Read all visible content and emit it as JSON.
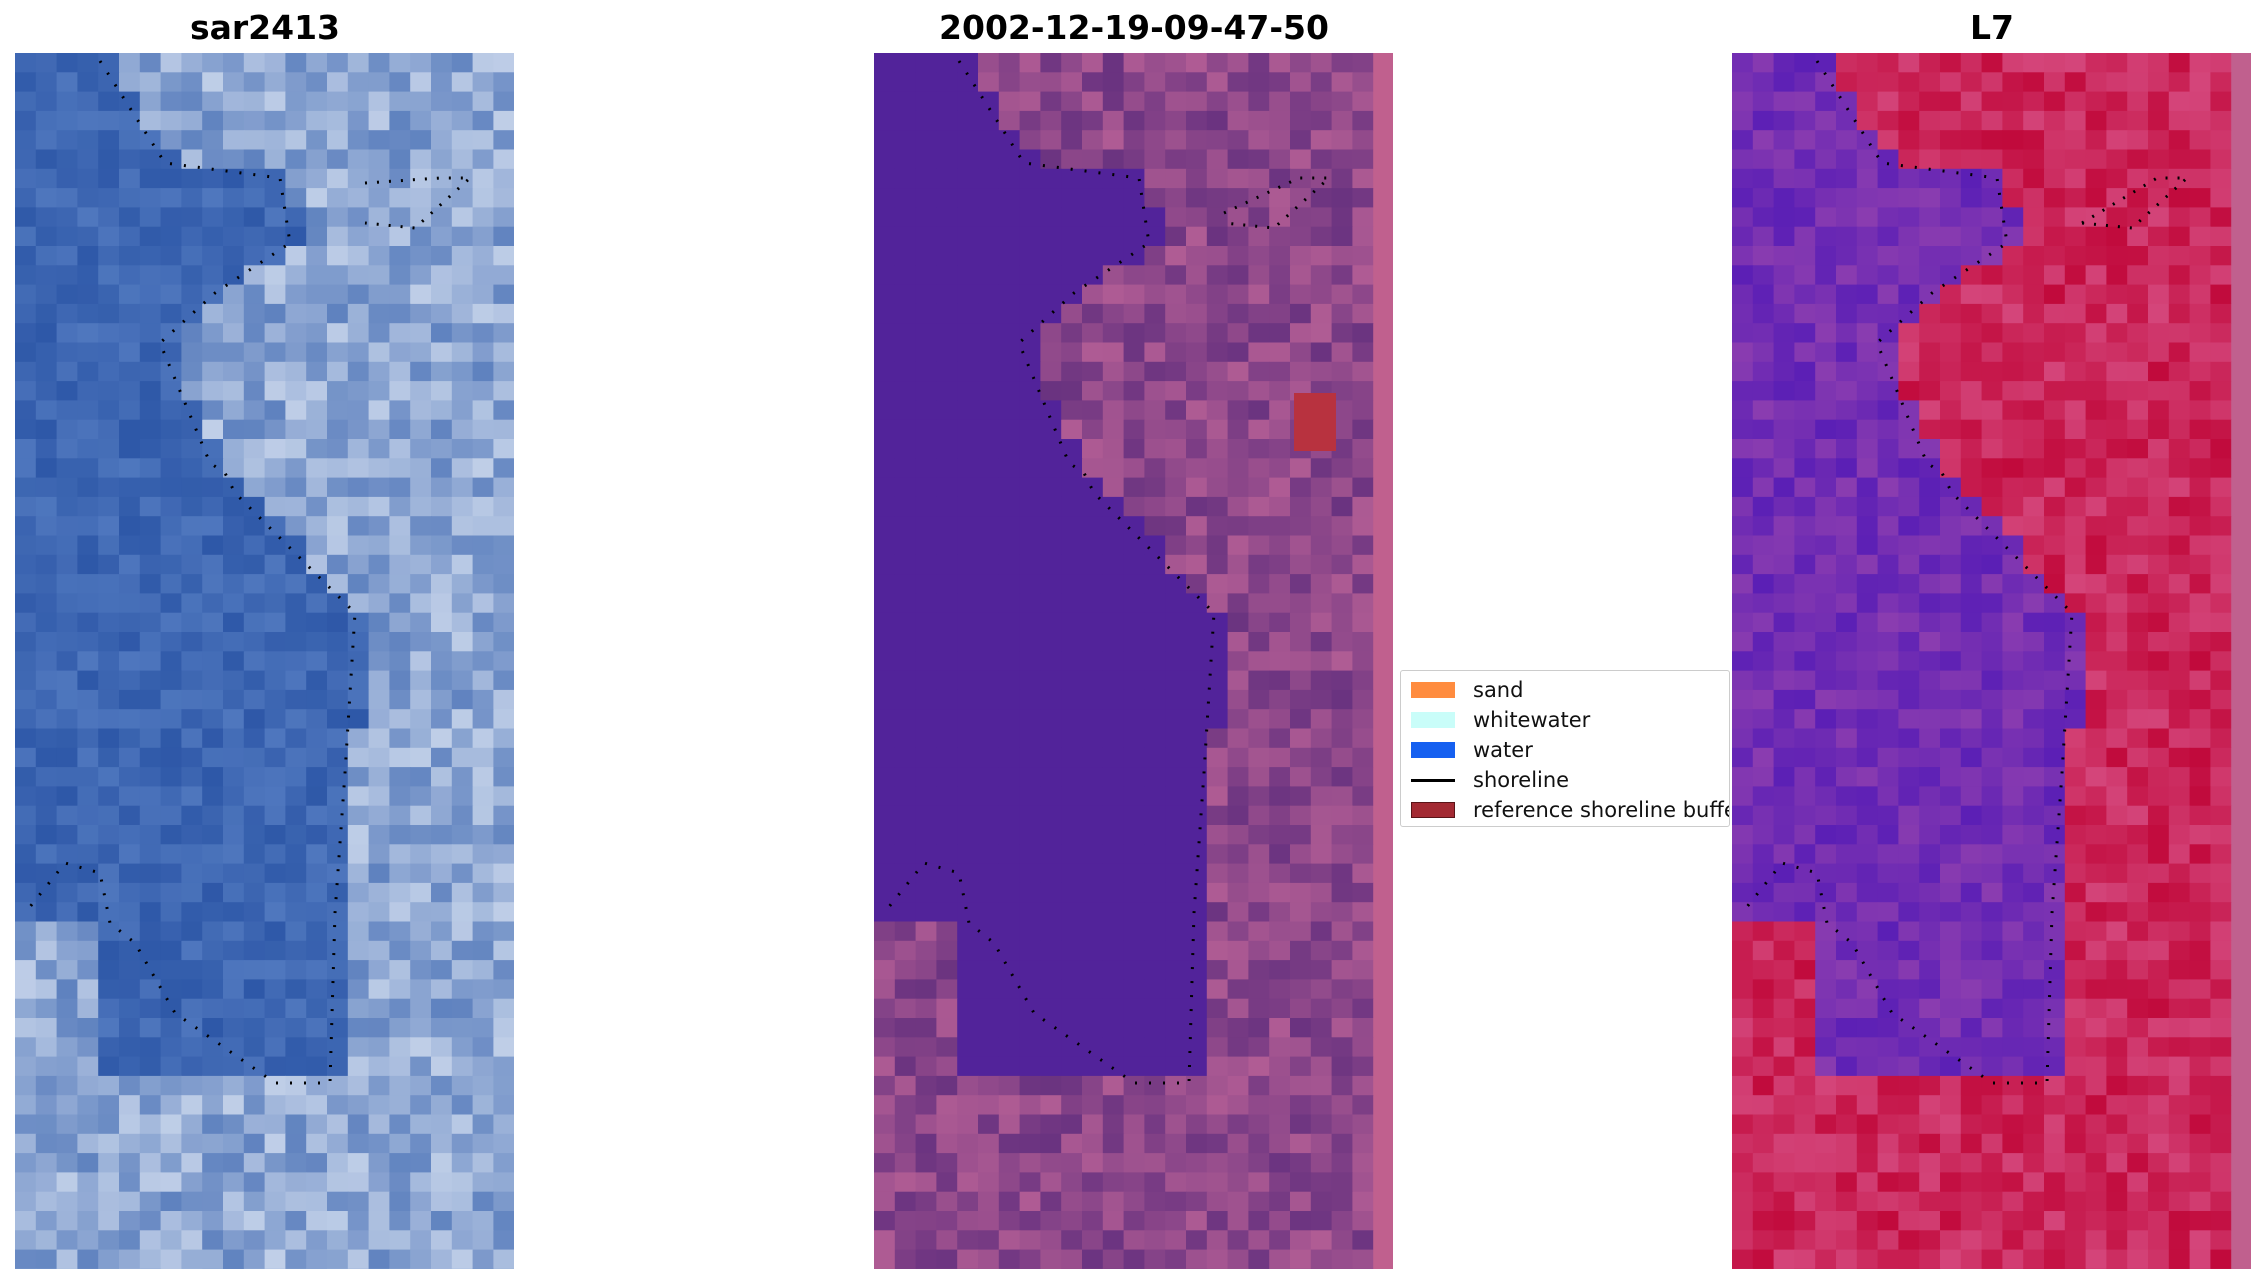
{
  "panels": [
    {
      "title": "sar2413",
      "style": "rgb"
    },
    {
      "title": "2002-12-19-09-47-50",
      "style": "classified"
    },
    {
      "title": "L7",
      "style": "mndwi"
    }
  ],
  "legend": {
    "items": [
      {
        "label": "sand",
        "color": "#ff8c3f",
        "kind": "patch"
      },
      {
        "label": "whitewater",
        "color": "#c9fdf9",
        "kind": "patch"
      },
      {
        "label": "water",
        "color": "#1660f0",
        "kind": "patch"
      },
      {
        "label": "shoreline",
        "color": "#000000",
        "kind": "line"
      },
      {
        "label": "reference shoreline buffer",
        "color": "#a32a33",
        "kind": "patch"
      }
    ]
  },
  "colors": {
    "water_dark": "#2f5fb0",
    "sand_light": "#c8d4e6",
    "class_water": "#52239a",
    "class_land": "#7a3f86",
    "mndwi_water": "#6e26b0",
    "mndwi_land": "#c8164a"
  }
}
